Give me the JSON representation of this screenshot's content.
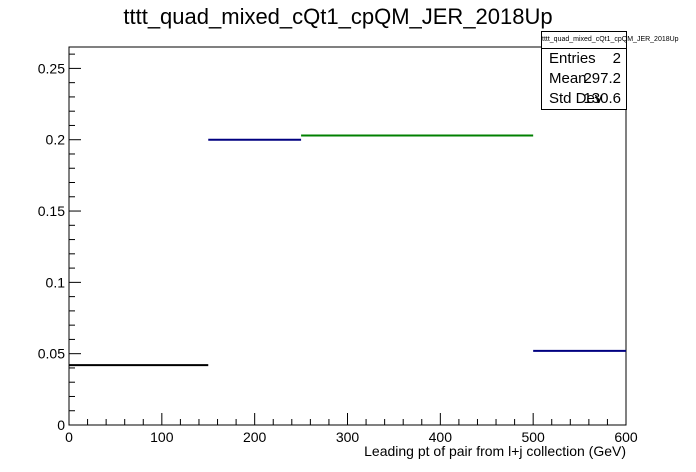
{
  "title": "tttt_quad_mixed_cQt1_cpQM_JER_2018Up",
  "stats": {
    "name": "tttt_quad_mixed_cQt1_cpQM_JER_2018Up",
    "entries_label": "Entries",
    "entries_value": "2",
    "mean_label": "Mean",
    "mean_value": "297.2",
    "stddev_label": "Std Dev",
    "stddev_value": "130.6"
  },
  "chart_data": {
    "type": "step",
    "title": "tttt_quad_mixed_cQt1_cpQM_JER_2018Up",
    "xlabel": "Leading pt of pair from l+j collection (GeV)",
    "ylabel": "",
    "xlim": [
      0,
      600
    ],
    "ylim": [
      0,
      0.265
    ],
    "x_ticks": [
      0,
      100,
      200,
      300,
      400,
      500,
      600
    ],
    "y_ticks": [
      0,
      0.05,
      0.1,
      0.15,
      0.2,
      0.25
    ],
    "x_tick_labels": [
      "0",
      "100",
      "200",
      "300",
      "400",
      "500",
      "600"
    ],
    "y_tick_labels": [
      "0",
      "0.05",
      "0.1",
      "0.15",
      "0.2",
      "0.25"
    ],
    "bins": [
      {
        "x0": 0,
        "x1": 150,
        "y": 0.042,
        "color": "#000000"
      },
      {
        "x0": 150,
        "x1": 250,
        "y": 0.2,
        "color": "#000080"
      },
      {
        "x0": 250,
        "x1": 500,
        "y": 0.203,
        "color": "#008000"
      },
      {
        "x0": 500,
        "x1": 600,
        "y": 0.052,
        "color": "#000080"
      }
    ],
    "grid": false
  }
}
